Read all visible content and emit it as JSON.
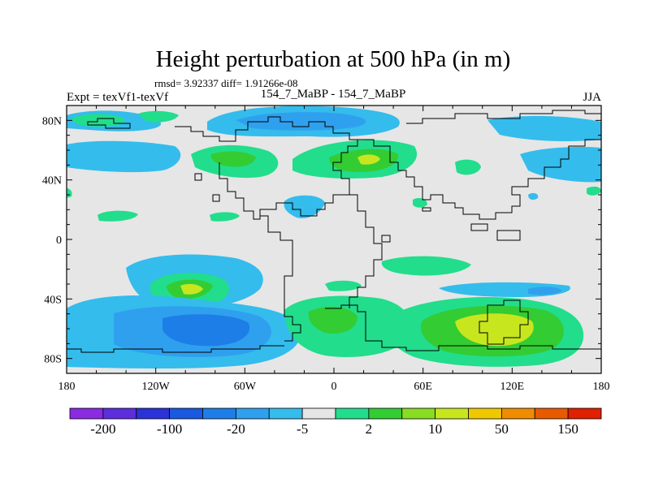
{
  "figure": {
    "title": "Height perturbation at 500 hPa (in m)",
    "stats": "rmsd= 3.92337 diff= 1.91266e-08",
    "experiment_label": "Expt = texVf1-texVf",
    "case_label": "154_7_MaBP - 154_7_MaBP",
    "season": "JJA"
  },
  "map": {
    "projection": "cylindrical equidistant",
    "lon_range": [
      -180,
      180
    ],
    "lat_range": [
      -90,
      90
    ],
    "x_ticks": [
      {
        "lon": -180,
        "label": "180"
      },
      {
        "lon": -120,
        "label": "120W"
      },
      {
        "lon": -60,
        "label": "60W"
      },
      {
        "lon": 0,
        "label": "0"
      },
      {
        "lon": 60,
        "label": "60E"
      },
      {
        "lon": 120,
        "label": "120E"
      },
      {
        "lon": 180,
        "label": "180"
      }
    ],
    "y_ticks": [
      {
        "lat": 80,
        "label": "80N"
      },
      {
        "lat": 40,
        "label": "40N"
      },
      {
        "lat": 0,
        "label": "0"
      },
      {
        "lat": -40,
        "label": "40S"
      },
      {
        "lat": -80,
        "label": "80S"
      }
    ]
  },
  "colorbar": {
    "colors": [
      "#8a2be2",
      "#5d2edc",
      "#2a32d8",
      "#1a5ae0",
      "#1e7ee8",
      "#2fa0ee",
      "#34bcec",
      "#e6e6e6",
      "#22dd8c",
      "#33cc33",
      "#88dd22",
      "#c8e61e",
      "#f0c800",
      "#f08c00",
      "#e85a00",
      "#e02000"
    ],
    "labels": [
      {
        "boundary": 1,
        "text": "-200"
      },
      {
        "boundary": 3,
        "text": "-100"
      },
      {
        "boundary": 5,
        "text": "-20"
      },
      {
        "boundary": 7,
        "text": "-5"
      },
      {
        "boundary": 9,
        "text": "2"
      },
      {
        "boundary": 11,
        "text": "10"
      },
      {
        "boundary": 13,
        "text": "50"
      },
      {
        "boundary": 15,
        "text": "150"
      }
    ]
  }
}
